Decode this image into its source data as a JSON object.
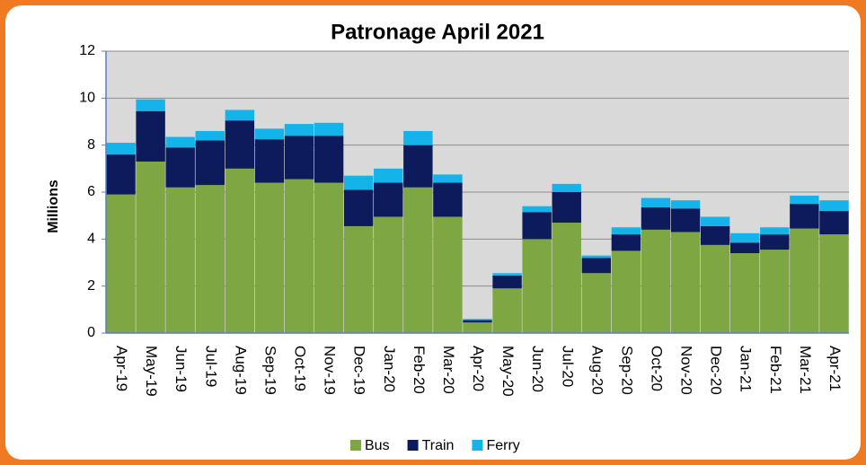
{
  "chart_data": {
    "type": "stacked_bar",
    "title": "Patronage April 2021",
    "y_label": "Millions",
    "categories": [
      "Apr-19",
      "May-19",
      "Jun-19",
      "Jul-19",
      "Aug-19",
      "Sep-19",
      "Oct-19",
      "Nov-19",
      "Dec-19",
      "Jan-20",
      "Feb-20",
      "Mar-20",
      "Apr-20",
      "May-20",
      "Jun-20",
      "Jul-20",
      "Aug-20",
      "Sep-20",
      "Oct-20",
      "Nov-20",
      "Dec-20",
      "Jan-21",
      "Feb-21",
      "Mar-21",
      "Apr-21"
    ],
    "series": [
      {
        "name": "Bus",
        "color": "#7ea642",
        "values": [
          5.9,
          7.3,
          6.2,
          6.3,
          7.0,
          6.4,
          6.55,
          6.4,
          4.55,
          4.95,
          6.2,
          4.95,
          0.45,
          1.9,
          4.0,
          4.7,
          2.55,
          3.5,
          4.4,
          4.3,
          3.75,
          3.4,
          3.55,
          4.45,
          4.2
        ]
      },
      {
        "name": "Train",
        "color": "#0d1a5c",
        "values": [
          1.7,
          2.15,
          1.7,
          1.9,
          2.05,
          1.85,
          1.85,
          2.0,
          1.55,
          1.45,
          1.8,
          1.45,
          0.1,
          0.55,
          1.15,
          1.3,
          0.65,
          0.7,
          0.95,
          1.0,
          0.8,
          0.45,
          0.65,
          1.05,
          1.0
        ]
      },
      {
        "name": "Ferry",
        "color": "#14b4ea",
        "values": [
          0.5,
          0.5,
          0.45,
          0.4,
          0.45,
          0.45,
          0.5,
          0.55,
          0.6,
          0.6,
          0.6,
          0.35,
          0.05,
          0.1,
          0.25,
          0.35,
          0.1,
          0.3,
          0.4,
          0.35,
          0.4,
          0.4,
          0.3,
          0.35,
          0.45
        ]
      }
    ],
    "ylim": [
      0,
      12
    ],
    "yticks": [
      0,
      2,
      4,
      6,
      8,
      10,
      12
    ],
    "grid": true,
    "legend": "bottom"
  }
}
